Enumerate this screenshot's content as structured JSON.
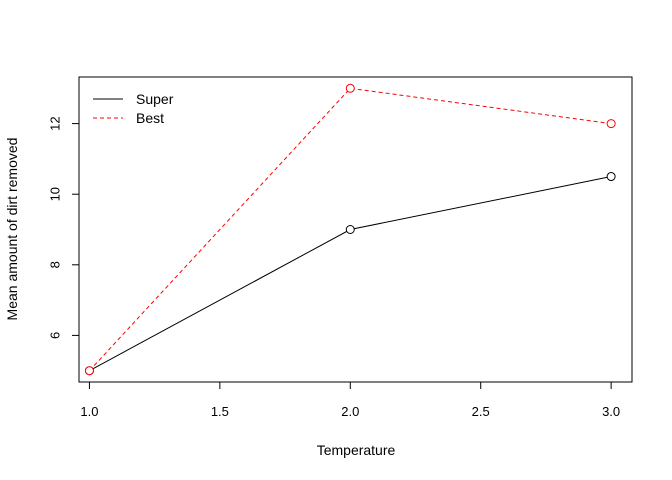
{
  "chart_data": {
    "type": "line",
    "title": "",
    "xlabel": "Temperature",
    "ylabel": "Mean amount of dirt removed",
    "x": [
      1.0,
      2.0,
      3.0
    ],
    "xlim": [
      0.96,
      3.08
    ],
    "ylim": [
      4.68,
      13.32
    ],
    "x_ticks": [
      "1.0",
      "1.5",
      "2.0",
      "2.5",
      "3.0"
    ],
    "y_ticks": [
      "6",
      "8",
      "10",
      "12"
    ],
    "grid": false,
    "legend_position": "top-left",
    "series": [
      {
        "name": "Super",
        "values": [
          5,
          9,
          10.5
        ],
        "color": "#000000",
        "line_style": "solid",
        "marker": "open-circle"
      },
      {
        "name": "Best",
        "values": [
          5,
          13,
          12
        ],
        "color": "#ff0000",
        "line_style": "dashed",
        "marker": "open-circle"
      }
    ]
  }
}
